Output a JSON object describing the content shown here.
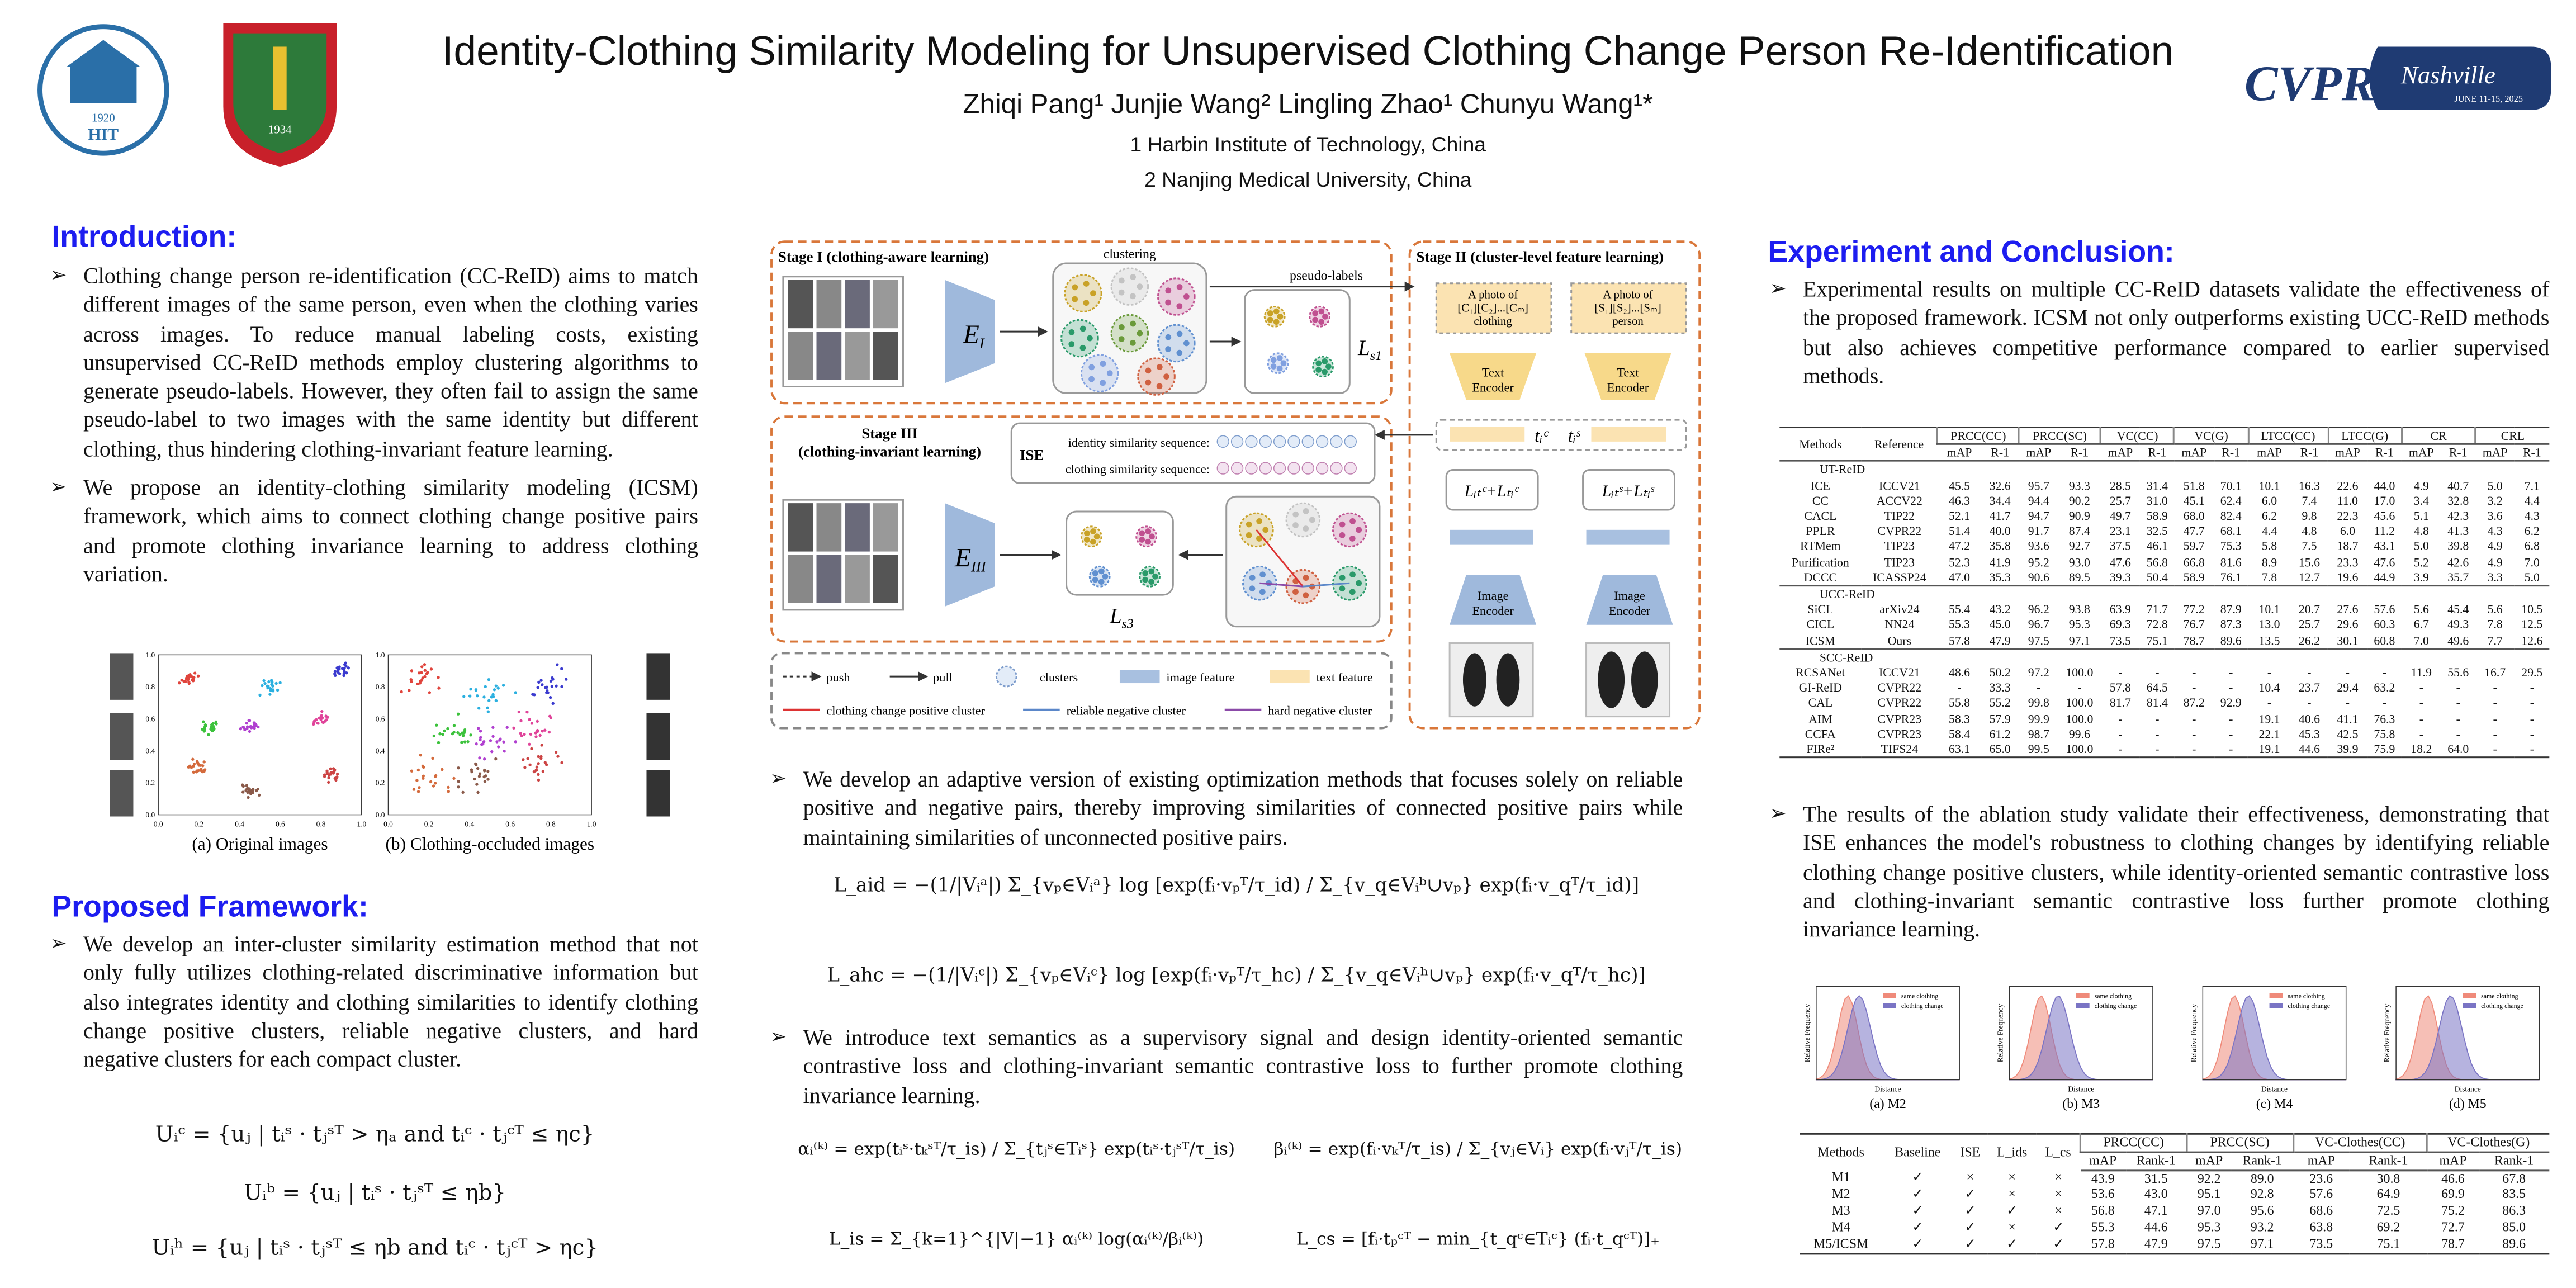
{
  "header": {
    "title": "Identity-Clothing Similarity Modeling for Unsupervised Clothing Change Person Re-Identification",
    "authors": "Zhiqi Pang¹ Junjie Wang² Lingling Zhao¹ Chunyu Wang¹*",
    "affiliations": [
      "1 Harbin Institute of Technology, China",
      "2 Nanjing Medical University, China"
    ]
  },
  "logos": {
    "hit_year": "1920",
    "hit_name": "HIT",
    "njmu_year": "1934",
    "cvpr": "CVPR",
    "city": "Nashville",
    "dates": "JUNE 11-15, 2025"
  },
  "introduction": {
    "heading": "Introduction:",
    "bullets": [
      "Clothing change person re-identification (CC-ReID) aims to match different images of the same person, even when the clothing varies across images. To reduce manual labeling costs, existing unsupervised CC-ReID methods employ clustering algorithms to generate pseudo-labels. However, they often fail to assign the same pseudo-label to two images with the same identity but different clothing, thus hindering clothing-invariant feature learning.",
      "We propose an identity-clothing similarity modeling (ICSM) framework, which aims to connect clothing change positive pairs and promote clothing invariance learning to address clothing variation."
    ]
  },
  "tsne_figure": {
    "ticks": [
      "0.0",
      "0.2",
      "0.4",
      "0.6",
      "0.8",
      "1.0"
    ],
    "captions": [
      "(a) Original images",
      "(b) Clothing-occluded images"
    ]
  },
  "framework": {
    "heading": "Proposed Framework:",
    "bullet": "We develop an inter-cluster similarity estimation method that not only fully utilizes clothing-related discriminative information but also integrates identity and clothing similarities to identify clothing change positive clusters, reliable negative clusters, and hard negative clusters for each compact cluster.",
    "equations": [
      "Uᵢᶜ = {uⱼ | tᵢˢ · tⱼˢᵀ > ηₐ  and  tᵢᶜ · tⱼᶜᵀ ≤ ηc}",
      "Uᵢᵇ = {uⱼ | tᵢˢ · tⱼˢᵀ ≤ ηb}",
      "Uᵢʰ = {uⱼ | tᵢˢ · tⱼˢᵀ ≤ ηb  and  tᵢᶜ · tⱼᶜᵀ > ηc}"
    ]
  },
  "method_diagram": {
    "stage1": "Stage I (clothing-aware learning)",
    "clustering": "clustering",
    "pseudo_labels": "pseudo-labels",
    "encoder1": {
      "base": "E",
      "sub": "I"
    },
    "loss1": {
      "base": "L",
      "sub": "s1"
    },
    "stage2": "Stage II (cluster-level feature learning)",
    "prompt_clothing": [
      "A photo of",
      "[C₁][C₂]...[Cₘ]",
      "clothing"
    ],
    "prompt_person": [
      "A photo of",
      "[S₁][S₂]...[Sₘ]",
      "person"
    ],
    "text_encoder": [
      "Text",
      "Encoder"
    ],
    "image_encoder": [
      "Image",
      "Encoder"
    ],
    "text_features": [
      "tᵢᶜ",
      "tᵢˢ"
    ],
    "stage2_losses": [
      "Lᵢₜᶜ+Lₜᵢᶜ",
      "Lᵢₜˢ+Lₜᵢˢ"
    ],
    "stage3": [
      "Stage III",
      "(clothing-invariant learning)"
    ],
    "ise": "ISE",
    "identity_sequence": "identity similarity sequence:",
    "clothing_sequence": "clothing similarity sequence:",
    "encoder3": {
      "base": "E",
      "sub": "III"
    },
    "loss3": {
      "base": "L",
      "sub": "s3"
    },
    "legend": [
      "push",
      "pull",
      "clusters",
      "image feature",
      "text feature",
      "clothing change positive cluster",
      "reliable negative cluster",
      "hard negative cluster"
    ]
  },
  "optimization": {
    "bullets": [
      "We develop an adaptive version of existing optimization methods that focuses solely on reliable positive and negative pairs, thereby improving similarities of connected positive pairs while maintaining similarities of unconnected positive pairs.",
      "We introduce text semantics as a supervisory signal and design identity-oriented semantic contrastive loss and clothing-invariant semantic contrastive loss to further promote clothing invariance learning."
    ],
    "loss_equations": [
      "L_aid = −(1/|Vᵢᵃ|) Σ_{vₚ∈Vᵢᵃ} log [exp(fᵢ·vₚᵀ/τ_id) / Σ_{v_q∈Vᵢᵇ∪vₚ} exp(fᵢ·v_qᵀ/τ_id)]",
      "L_ahc = −(1/|Vᵢᶜ|) Σ_{vₚ∈Vᵢᶜ} log [exp(fᵢ·vₚᵀ/τ_hc) / Σ_{v_q∈Vᵢʰ∪vₚ} exp(fᵢ·v_qᵀ/τ_hc)]"
    ],
    "semantic_equations": [
      "αᵢ⁽ᵏ⁾ = exp(tᵢˢ·tₖˢᵀ/τ_is) / Σ_{tⱼˢ∈Tᵢˢ} exp(tᵢˢ·tⱼˢᵀ/τ_is)",
      "βᵢ⁽ᵏ⁾ = exp(fᵢ·vₖᵀ/τ_is) / Σ_{vⱼ∈Vᵢ} exp(fᵢ·vⱼᵀ/τ_is)",
      "L_is = Σ_{k=1}^{|V|−1} αᵢ⁽ᵏ⁾ log(αᵢ⁽ᵏ⁾/βᵢ⁽ᵏ⁾)",
      "L_cs = [fᵢ·tₚᶜᵀ − min_{t_qᶜ∈Tᵢᶜ} (fᵢ·t_qᶜᵀ)]₊"
    ]
  },
  "experiments": {
    "heading": "Experiment and Conclusion:",
    "bullets": [
      "Experimental results on multiple CC-ReID datasets validate the effectiveness of the proposed framework. ICSM not only outperforms existing UCC-ReID methods but also achieves competitive performance compared to earlier supervised methods.",
      "The results of the ablation study validate their effectiveness, demonstrating that ISE enhances the model's robustness to clothing changes by identifying reliable clothing change positive clusters, while identity-oriented semantic contrastive loss and clothing-invariant semantic contrastive loss further promote clothing invariance learning."
    ],
    "results_table": {
      "columns": [
        "Methods",
        "Reference"
      ],
      "groups": [
        "PRCC(CC)",
        "PRCC(SC)",
        "VC(CC)",
        "VC(G)",
        "LTCC(CC)",
        "LTCC(G)",
        "CR",
        "CRL"
      ],
      "metrics": [
        "mAP",
        "R-1"
      ],
      "sections": [
        {
          "name": "UT-ReID",
          "rows": [
            [
              "ICE",
              "ICCV21",
              "45.5",
              "32.6",
              "95.7",
              "93.3",
              "28.5",
              "31.4",
              "51.8",
              "70.1",
              "10.1",
              "16.3",
              "22.6",
              "44.0",
              "4.9",
              "40.7",
              "5.0",
              "7.1"
            ],
            [
              "CC",
              "ACCV22",
              "46.3",
              "34.4",
              "94.4",
              "90.2",
              "25.7",
              "31.0",
              "45.1",
              "62.4",
              "6.0",
              "7.4",
              "11.0",
              "17.0",
              "3.4",
              "32.8",
              "3.2",
              "4.4"
            ],
            [
              "CACL",
              "TIP22",
              "52.1",
              "41.7",
              "94.7",
              "90.9",
              "49.7",
              "58.9",
              "68.0",
              "82.4",
              "6.2",
              "9.8",
              "22.3",
              "45.6",
              "5.1",
              "42.3",
              "3.6",
              "4.3"
            ],
            [
              "PPLR",
              "CVPR22",
              "51.4",
              "40.0",
              "91.7",
              "87.4",
              "23.1",
              "32.5",
              "47.7",
              "68.1",
              "4.4",
              "4.8",
              "6.0",
              "11.2",
              "4.8",
              "41.3",
              "4.3",
              "6.2"
            ],
            [
              "RTMem",
              "TIP23",
              "47.2",
              "35.8",
              "93.6",
              "92.7",
              "37.5",
              "46.1",
              "59.7",
              "75.3",
              "5.8",
              "7.5",
              "18.7",
              "43.1",
              "5.0",
              "39.8",
              "4.9",
              "6.8"
            ],
            [
              "Purification",
              "TIP23",
              "52.3",
              "41.9",
              "95.2",
              "93.0",
              "47.6",
              "56.8",
              "66.8",
              "81.6",
              "8.9",
              "15.6",
              "23.3",
              "47.6",
              "5.2",
              "42.6",
              "4.9",
              "7.0"
            ],
            [
              "DCCC",
              "ICASSP24",
              "47.0",
              "35.3",
              "90.6",
              "89.5",
              "39.3",
              "50.4",
              "58.9",
              "76.1",
              "7.8",
              "12.7",
              "19.6",
              "44.9",
              "3.9",
              "35.7",
              "3.3",
              "5.0"
            ]
          ]
        },
        {
          "name": "UCC-ReID",
          "rows": [
            [
              "SiCL",
              "arXiv24",
              "55.4",
              "43.2",
              "96.2",
              "93.8",
              "63.9",
              "71.7",
              "77.2",
              "87.9",
              "10.1",
              "20.7",
              "27.6",
              "57.6",
              "5.6",
              "45.4",
              "5.6",
              "10.5"
            ],
            [
              "CICL",
              "NN24",
              "55.3",
              "45.0",
              "96.7",
              "95.3",
              "69.3",
              "72.8",
              "76.7",
              "87.3",
              "13.0",
              "25.7",
              "29.6",
              "60.3",
              "6.7",
              "49.3",
              "7.8",
              "12.5"
            ],
            [
              "ICSM",
              "Ours",
              "57.8",
              "47.9",
              "97.5",
              "97.1",
              "73.5",
              "75.1",
              "78.7",
              "89.6",
              "13.5",
              "26.2",
              "30.1",
              "60.8",
              "7.0",
              "49.6",
              "7.7",
              "12.6"
            ]
          ]
        },
        {
          "name": "SCC-ReID",
          "rows": [
            [
              "RCSANet",
              "ICCV21",
              "48.6",
              "50.2",
              "97.2",
              "100.0",
              "-",
              "-",
              "-",
              "-",
              "-",
              "-",
              "-",
              "-",
              "11.9",
              "55.6",
              "16.7",
              "29.5"
            ],
            [
              "GI-ReID",
              "CVPR22",
              "-",
              "33.3",
              "-",
              "-",
              "57.8",
              "64.5",
              "-",
              "-",
              "10.4",
              "23.7",
              "29.4",
              "63.2",
              "-",
              "-",
              "-",
              "-"
            ],
            [
              "CAL",
              "CVPR22",
              "55.8",
              "55.2",
              "99.8",
              "100.0",
              "81.7",
              "81.4",
              "87.2",
              "92.9",
              "-",
              "-",
              "-",
              "-",
              "-",
              "-",
              "-",
              "-"
            ],
            [
              "AIM",
              "CVPR23",
              "58.3",
              "57.9",
              "99.9",
              "100.0",
              "-",
              "-",
              "-",
              "-",
              "19.1",
              "40.6",
              "41.1",
              "76.3",
              "-",
              "-",
              "-",
              "-"
            ],
            [
              "CCFA",
              "CVPR23",
              "58.4",
              "61.2",
              "98.7",
              "99.6",
              "-",
              "-",
              "-",
              "-",
              "22.1",
              "45.3",
              "42.5",
              "75.8",
              "-",
              "-",
              "-",
              "-"
            ],
            [
              "FIRe²",
              "TIFS24",
              "63.1",
              "65.0",
              "99.5",
              "100.0",
              "-",
              "-",
              "-",
              "-",
              "19.1",
              "44.6",
              "39.9",
              "75.9",
              "18.2",
              "64.0",
              "-",
              "-"
            ]
          ]
        }
      ]
    },
    "ablation_figure": {
      "legend": [
        "same clothing",
        "clothing change"
      ],
      "x_label": "Distance",
      "y_label": "Relative Frequency",
      "captions": [
        "(a) M2",
        "(b) M3",
        "(c) M4",
        "(d) M5"
      ]
    },
    "ablation_table": {
      "columns": [
        "Methods",
        "Baseline",
        "ISE",
        "L_ids",
        "L_cs"
      ],
      "groups": [
        "PRCC(CC)",
        "PRCC(SC)",
        "VC-Clothes(CC)",
        "VC-Clothes(G)"
      ],
      "metrics": [
        "mAP",
        "Rank-1"
      ],
      "rows": [
        [
          "M1",
          "✓",
          "×",
          "×",
          "×",
          "43.9",
          "31.5",
          "92.2",
          "89.0",
          "23.6",
          "30.8",
          "46.6",
          "67.8"
        ],
        [
          "M2",
          "✓",
          "✓",
          "×",
          "×",
          "53.6",
          "43.0",
          "95.1",
          "92.8",
          "57.6",
          "64.9",
          "69.9",
          "83.5"
        ],
        [
          "M3",
          "✓",
          "✓",
          "✓",
          "×",
          "56.8",
          "47.1",
          "97.0",
          "95.6",
          "68.6",
          "72.5",
          "75.2",
          "86.3"
        ],
        [
          "M4",
          "✓",
          "✓",
          "×",
          "✓",
          "55.3",
          "44.6",
          "95.3",
          "93.2",
          "63.8",
          "69.2",
          "72.7",
          "85.0"
        ],
        [
          "M5/ICSM",
          "✓",
          "✓",
          "✓",
          "✓",
          "57.8",
          "47.9",
          "97.5",
          "97.1",
          "73.5",
          "75.1",
          "78.7",
          "89.6"
        ]
      ]
    }
  }
}
